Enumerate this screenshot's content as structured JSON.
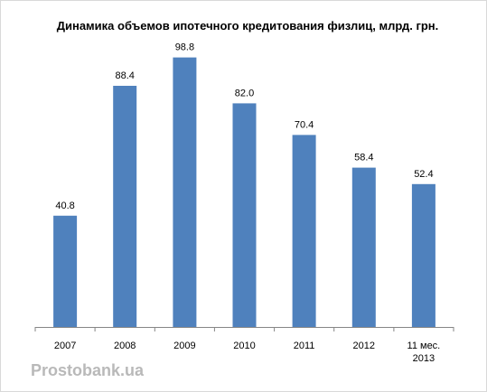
{
  "chart_data": {
    "type": "bar",
    "title": "Динамика объемов ипотечного кредитования физлиц, млрд. грн.",
    "categories": [
      "2007",
      "2008",
      "2009",
      "2010",
      "2011",
      "2012",
      "11 мес. 2013"
    ],
    "category_lines": [
      [
        "2007"
      ],
      [
        "2008"
      ],
      [
        "2009"
      ],
      [
        "2010"
      ],
      [
        "2011"
      ],
      [
        "2012"
      ],
      [
        "11 мес.",
        "2013"
      ]
    ],
    "values": [
      40.8,
      88.4,
      98.8,
      82.0,
      70.4,
      58.4,
      52.4
    ],
    "value_labels": [
      "40.8",
      "88.4",
      "98.8",
      "82.0",
      "70.4",
      "58.4",
      "52.4"
    ],
    "xlabel": "",
    "ylabel": "",
    "ylim": [
      0,
      100
    ],
    "grid": false,
    "legend": "none",
    "bar_color": "#4f81bd",
    "axis_color": "#868686"
  },
  "watermark": "Prostobank.ua"
}
